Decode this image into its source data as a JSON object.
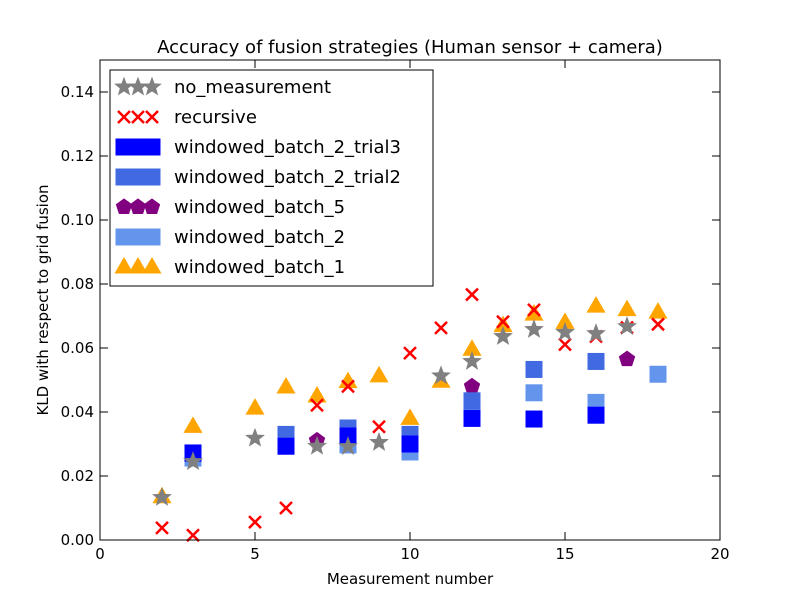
{
  "chart_data": {
    "type": "scatter",
    "title": "Accuracy of fusion strategies (Human sensor + camera)",
    "xlabel": "Measurement number",
    "ylabel": "KLD with respect to grid fusion",
    "xlim": [
      0,
      20
    ],
    "ylim": [
      0,
      0.15
    ],
    "xticks": [
      0,
      5,
      10,
      15,
      20
    ],
    "yticks": [
      0.0,
      0.02,
      0.04,
      0.06,
      0.08,
      0.1,
      0.12,
      0.14
    ],
    "grid": false,
    "legend_position": "top-left",
    "series": [
      {
        "name": "no_measurement",
        "marker": "star",
        "color": "#808080",
        "points": [
          [
            2,
            0.0133
          ],
          [
            3,
            0.0245
          ],
          [
            5,
            0.0318
          ],
          [
            7,
            0.0293
          ],
          [
            8,
            0.0292
          ],
          [
            9,
            0.0305
          ],
          [
            11,
            0.0513
          ],
          [
            12,
            0.0558
          ],
          [
            13,
            0.0636
          ],
          [
            14,
            0.0658
          ],
          [
            15,
            0.0649
          ],
          [
            16,
            0.0645
          ],
          [
            17,
            0.0667
          ]
        ]
      },
      {
        "name": "recursive",
        "marker": "x",
        "color": "#ff0000",
        "points": [
          [
            2,
            0.0038
          ],
          [
            3,
            0.0015
          ],
          [
            5,
            0.0056
          ],
          [
            6,
            0.01
          ],
          [
            7,
            0.0421
          ],
          [
            8,
            0.048
          ],
          [
            9,
            0.0354
          ],
          [
            10,
            0.0584
          ],
          [
            11,
            0.0663
          ],
          [
            12,
            0.0767
          ],
          [
            13,
            0.0682
          ],
          [
            14,
            0.0719
          ],
          [
            15,
            0.0611
          ],
          [
            16,
            0.0636
          ],
          [
            17,
            0.0664
          ],
          [
            18,
            0.0674
          ]
        ]
      },
      {
        "name": "windowed_batch_2_trial3",
        "marker": "square",
        "color": "#0000ff",
        "points": [
          [
            3,
            0.0272
          ],
          [
            6,
            0.0293
          ],
          [
            8,
            0.0325
          ],
          [
            10,
            0.03
          ],
          [
            12,
            0.038
          ],
          [
            14,
            0.0378
          ],
          [
            16,
            0.039
          ]
        ]
      },
      {
        "name": "windowed_batch_2_trial2",
        "marker": "square",
        "color": "#4169e1",
        "points": [
          [
            3,
            0.027
          ],
          [
            6,
            0.033
          ],
          [
            8,
            0.035
          ],
          [
            10,
            0.033
          ],
          [
            12,
            0.0435
          ],
          [
            14,
            0.0533
          ],
          [
            16,
            0.0558
          ]
        ]
      },
      {
        "name": "windowed_batch_5",
        "marker": "pentagon",
        "color": "#800080",
        "points": [
          [
            7,
            0.0311
          ],
          [
            12,
            0.048
          ],
          [
            17,
            0.0565
          ]
        ]
      },
      {
        "name": "windowed_batch_2",
        "marker": "square",
        "color": "#6495ed",
        "points": [
          [
            3,
            0.0256
          ],
          [
            6,
            0.0307
          ],
          [
            8,
            0.0297
          ],
          [
            10,
            0.0275
          ],
          [
            12,
            0.039
          ],
          [
            14,
            0.046
          ],
          [
            16,
            0.043
          ],
          [
            18,
            0.0518
          ]
        ]
      },
      {
        "name": "windowed_batch_1",
        "marker": "triangle",
        "color": "#ffa500",
        "points": [
          [
            2,
            0.0135
          ],
          [
            3,
            0.0355
          ],
          [
            5,
            0.0412
          ],
          [
            6,
            0.0478
          ],
          [
            7,
            0.045
          ],
          [
            8,
            0.0495
          ],
          [
            9,
            0.0513
          ],
          [
            10,
            0.038
          ],
          [
            11,
            0.0496
          ],
          [
            12,
            0.0596
          ],
          [
            13,
            0.067
          ],
          [
            14,
            0.0706
          ],
          [
            15,
            0.068
          ],
          [
            16,
            0.0731
          ],
          [
            17,
            0.072
          ],
          [
            18,
            0.0712
          ]
        ]
      }
    ]
  }
}
